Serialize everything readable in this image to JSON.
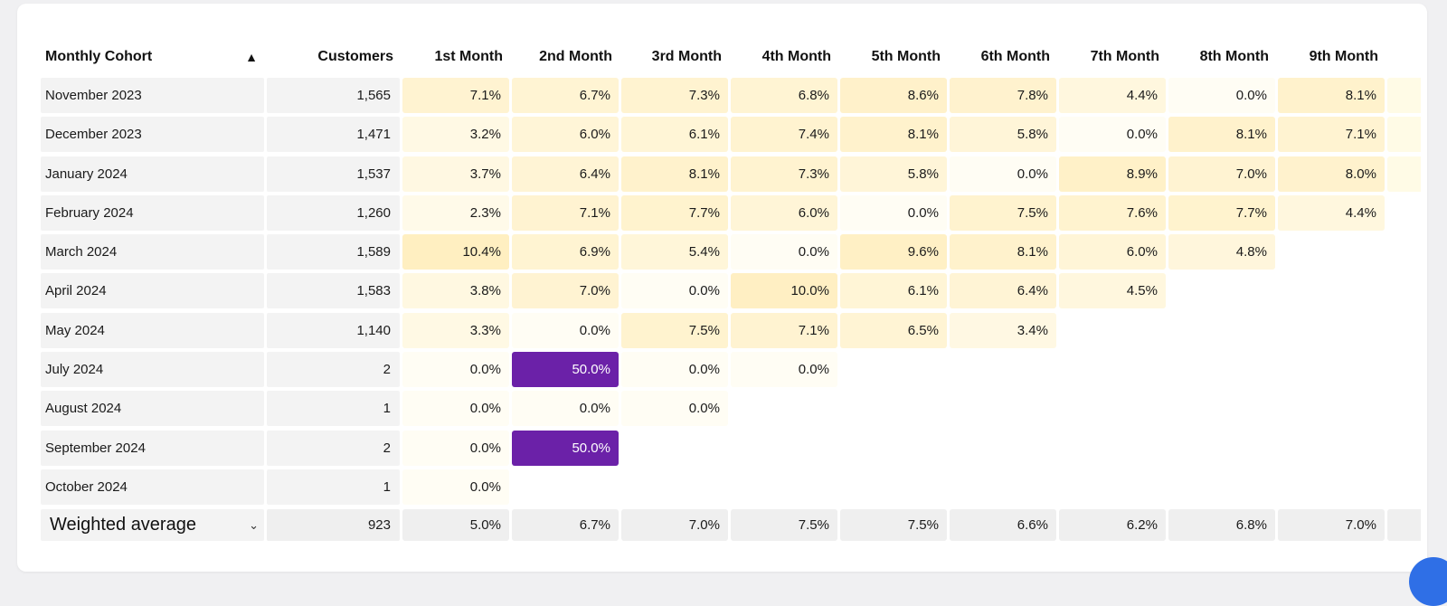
{
  "table": {
    "headers": [
      "Monthly Cohort",
      "Customers",
      "1st Month",
      "2nd Month",
      "3rd Month",
      "4th Month",
      "5th Month",
      "6th Month",
      "7th Month",
      "8th Month",
      "9th Month",
      ""
    ],
    "rows": [
      {
        "cohort": "November 2023",
        "customers": "1,565",
        "values": [
          "7.1%",
          "6.7%",
          "7.3%",
          "6.8%",
          "8.6%",
          "7.8%",
          "4.4%",
          "0.0%",
          "8.1%",
          ""
        ]
      },
      {
        "cohort": "December 2023",
        "customers": "1,471",
        "values": [
          "3.2%",
          "6.0%",
          "6.1%",
          "7.4%",
          "8.1%",
          "5.8%",
          "0.0%",
          "8.1%",
          "7.1%",
          ""
        ]
      },
      {
        "cohort": "January 2024",
        "customers": "1,537",
        "values": [
          "3.7%",
          "6.4%",
          "8.1%",
          "7.3%",
          "5.8%",
          "0.0%",
          "8.9%",
          "7.0%",
          "8.0%",
          ""
        ]
      },
      {
        "cohort": "February 2024",
        "customers": "1,260",
        "values": [
          "2.3%",
          "7.1%",
          "7.7%",
          "6.0%",
          "0.0%",
          "7.5%",
          "7.6%",
          "7.7%",
          "4.4%",
          null
        ]
      },
      {
        "cohort": "March 2024",
        "customers": "1,589",
        "values": [
          "10.4%",
          "6.9%",
          "5.4%",
          "0.0%",
          "9.6%",
          "8.1%",
          "6.0%",
          "4.8%",
          null,
          null
        ]
      },
      {
        "cohort": "April 2024",
        "customers": "1,583",
        "values": [
          "3.8%",
          "7.0%",
          "0.0%",
          "10.0%",
          "6.1%",
          "6.4%",
          "4.5%",
          null,
          null,
          null
        ]
      },
      {
        "cohort": "May 2024",
        "customers": "1,140",
        "values": [
          "3.3%",
          "0.0%",
          "7.5%",
          "7.1%",
          "6.5%",
          "3.4%",
          null,
          null,
          null,
          null
        ]
      },
      {
        "cohort": "July 2024",
        "customers": "2",
        "values": [
          "0.0%",
          "50.0%",
          "0.0%",
          "0.0%",
          null,
          null,
          null,
          null,
          null,
          null
        ]
      },
      {
        "cohort": "August 2024",
        "customers": "1",
        "values": [
          "0.0%",
          "0.0%",
          "0.0%",
          null,
          null,
          null,
          null,
          null,
          null,
          null
        ]
      },
      {
        "cohort": "September 2024",
        "customers": "2",
        "values": [
          "0.0%",
          "50.0%",
          null,
          null,
          null,
          null,
          null,
          null,
          null,
          null
        ]
      },
      {
        "cohort": "October 2024",
        "customers": "1",
        "values": [
          "0.0%",
          null,
          null,
          null,
          null,
          null,
          null,
          null,
          null,
          null
        ]
      }
    ],
    "average": {
      "label": "Weighted average",
      "customers": "923",
      "values": [
        "5.0%",
        "6.7%",
        "7.0%",
        "7.5%",
        "7.5%",
        "6.6%",
        "6.2%",
        "6.8%",
        "7.0%",
        ""
      ]
    }
  },
  "colors": {
    "heat_high": "#6b21a8",
    "heat_base": "#fffbe6",
    "row_label_bg": "#f3f3f3",
    "fab": "#2f6fe6"
  }
}
